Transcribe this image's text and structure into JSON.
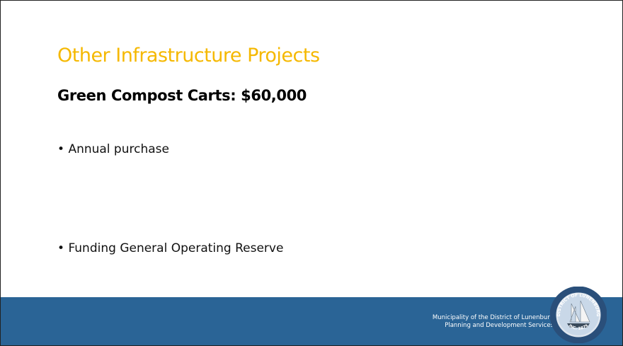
{
  "slide": {
    "title": "Other Infrastructure Projects",
    "subtitle": "Green Compost Carts: $60,000",
    "bullets": [
      "Annual purchase",
      "Funding General Operating Reserve"
    ],
    "footer": [
      "Municipality of the District of Lunenburg",
      "Planning and Development Services"
    ],
    "logo": {
      "top": "DISTRICT OF LUNENBURG",
      "bottom": "INC. 1879"
    }
  }
}
